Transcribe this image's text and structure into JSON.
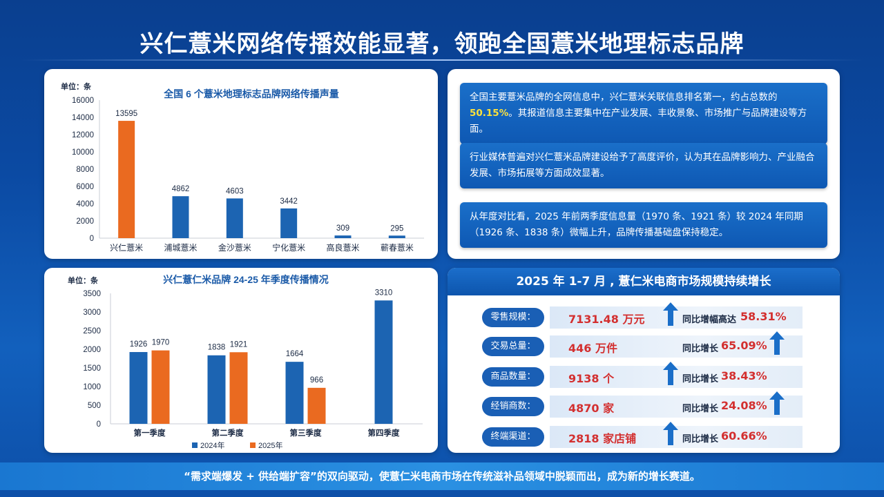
{
  "title": "兴仁薏米网络传播效能显著，领跑全国薏米地理标志品牌",
  "footer": "“需求端爆发 + 供给端扩容”的双向驱动，使薏仁米电商市场在传统滋补品领域中脱颖而出，成为新的增长赛道。",
  "chart_data": [
    {
      "type": "bar",
      "title": "全国 6 个薏米地理标志品牌网络传播声量",
      "unit_label": "单位：条",
      "categories": [
        "兴仁薏米",
        "浦城薏米",
        "金沙薏米",
        "宁化薏米",
        "高良薏米",
        "蕲春薏米"
      ],
      "values": [
        13595,
        4862,
        4603,
        3442,
        309,
        295
      ],
      "colors": [
        "#ea6a20",
        "#1c64b2",
        "#1c64b2",
        "#1c64b2",
        "#1c64b2",
        "#1c64b2"
      ],
      "ylim": [
        0,
        16000
      ],
      "yticks": [
        0,
        2000,
        4000,
        6000,
        8000,
        10000,
        12000,
        14000,
        16000
      ],
      "grid": false
    },
    {
      "type": "bar",
      "title": "兴仁薏仁米品牌 24-25 年季度传播情况",
      "unit_label": "单位：条",
      "categories": [
        "第一季度",
        "第二季度",
        "第三季度",
        "第四季度"
      ],
      "series": [
        {
          "name": "2024年",
          "values": [
            1926,
            1838,
            1664,
            3310
          ],
          "color": "#1c64b2"
        },
        {
          "name": "2025年",
          "values": [
            1970,
            1921,
            966,
            null
          ],
          "color": "#ea6a20"
        }
      ],
      "ylim": [
        0,
        3500
      ],
      "yticks": [
        0,
        500,
        1000,
        1500,
        2000,
        2500,
        3000,
        3500
      ],
      "legend_position": "bottom",
      "grid": false
    }
  ],
  "info": [
    {
      "pre": "全国主要薏米品牌的全网信息中，兴仁薏米关联信息排名第一，约占总数的",
      "highlight": "50.15%",
      "post": "。其报道信息主要集中在产业发展、丰收景象、市场推广与品牌建设等方面。"
    },
    {
      "text": "行业媒体普遍对兴仁薏米品牌建设给予了高度评价，认为其在品牌影响力、产业融合发展、市场拓展等方面成效显著。"
    },
    {
      "text": "从年度对比看，2025 年前两季度信息量（1970 条、1921 条）较 2024 年同期（1926 条、1838 条）微幅上升，品牌传播基础盘保持稳定。"
    }
  ],
  "market": {
    "title": "2025 年 1-7 月 , 薏仁米电商市场规模持续增长",
    "rows": [
      {
        "label": "零售规模：",
        "value": "7131.48 万元",
        "growth_label": "同比增幅高达",
        "growth": "58.31%"
      },
      {
        "label": "交易总量：",
        "value": "446 万件",
        "growth_label": "同比增长",
        "growth": "65.09%"
      },
      {
        "label": "商品数量：",
        "value": "9138 个",
        "growth_label": "同比增长",
        "growth": "38.43%"
      },
      {
        "label": "经销商数：",
        "value": "4870 家",
        "growth_label": "同比增长",
        "growth": "24.08%"
      },
      {
        "label": "终端渠道：",
        "value": "2818 家店铺",
        "growth_label": "同比增长",
        "growth": "60.66%"
      }
    ],
    "arrow_icon": "up-arrow-icon"
  }
}
